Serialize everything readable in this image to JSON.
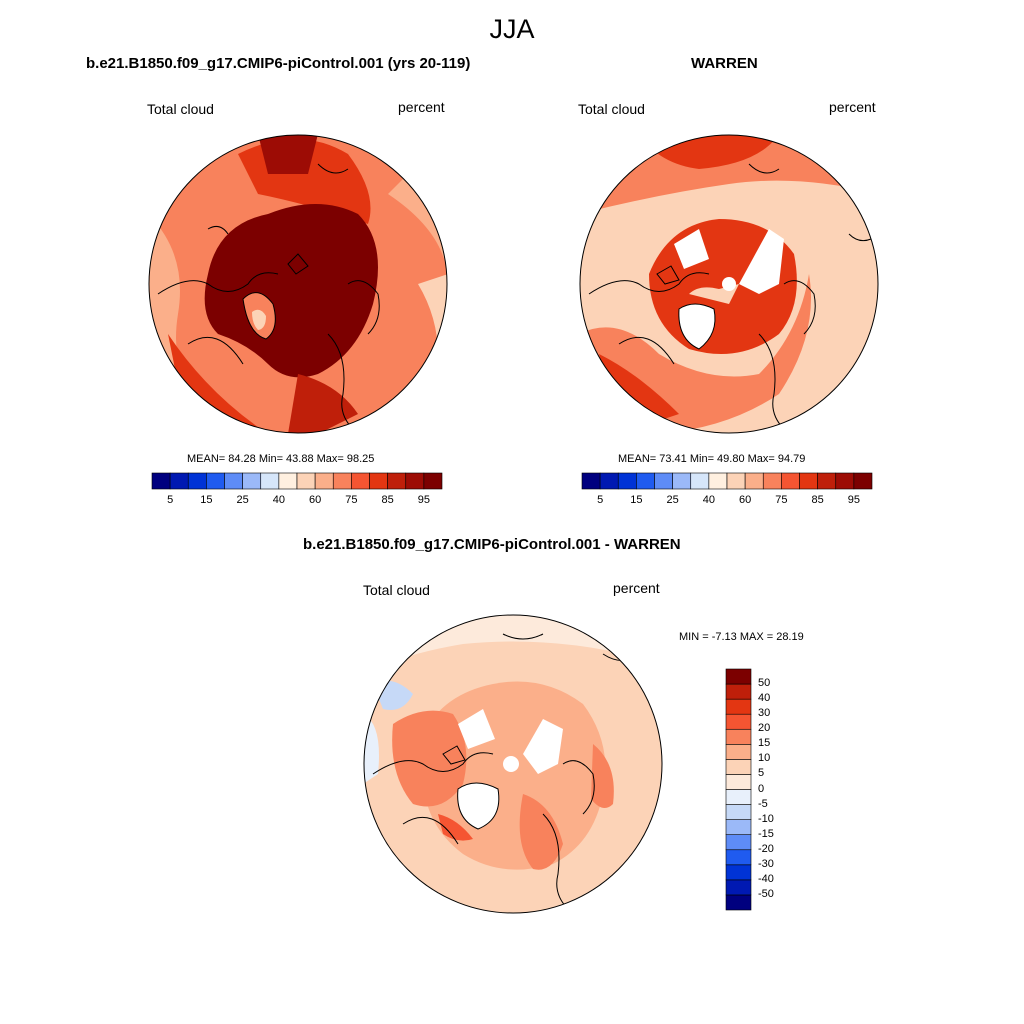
{
  "figure_title": "JJA",
  "palette": {
    "abs_colors": [
      "#00007f",
      "#0019b2",
      "#0033d6",
      "#1f5bf0",
      "#5e8cf7",
      "#9bb9f8",
      "#d6e6fa",
      "#fff0e0",
      "#fcd3b7",
      "#fbaf8a",
      "#f8825c",
      "#f55532",
      "#e33612",
      "#bf1f0a",
      "#9d0c05",
      "#7c0000"
    ],
    "diff_colors": [
      "#00007f",
      "#0019b2",
      "#0033d6",
      "#1f5bf0",
      "#5e8cf7",
      "#9bb9f8",
      "#c6d9f7",
      "#e8f0fb",
      "#fdeadb",
      "#fcd3b7",
      "#fbaf8a",
      "#f8825c",
      "#f55532",
      "#e33612",
      "#bf1f0a",
      "#7c0000"
    ]
  },
  "panels": {
    "model": {
      "title": "b.e21.B1850.f09_g17.CMIP6-piControl.001 (yrs 20-119)",
      "variable": "Total cloud",
      "units": "percent",
      "stats": "MEAN=  84.28  Min=  43.88  Max=  98.25",
      "colorbar_ticks": [
        "5",
        "15",
        "25",
        "40",
        "60",
        "75",
        "85",
        "95"
      ]
    },
    "obs": {
      "title": "WARREN",
      "variable": "Total cloud",
      "units": "percent",
      "stats": "MEAN=  73.41  Min=  49.80  Max=  94.79",
      "colorbar_ticks": [
        "5",
        "15",
        "25",
        "40",
        "60",
        "75",
        "85",
        "95"
      ]
    },
    "diff": {
      "title": "b.e21.B1850.f09_g17.CMIP6-piControl.001 - WARREN",
      "variable": "Total cloud",
      "units": "percent",
      "stats": "MIN =  -7.13 MAX =  28.19",
      "colorbar_ticks": [
        "50",
        "40",
        "30",
        "20",
        "15",
        "10",
        "5",
        "0",
        "-5",
        "-10",
        "-15",
        "-20",
        "-30",
        "-40",
        "-50"
      ]
    }
  }
}
